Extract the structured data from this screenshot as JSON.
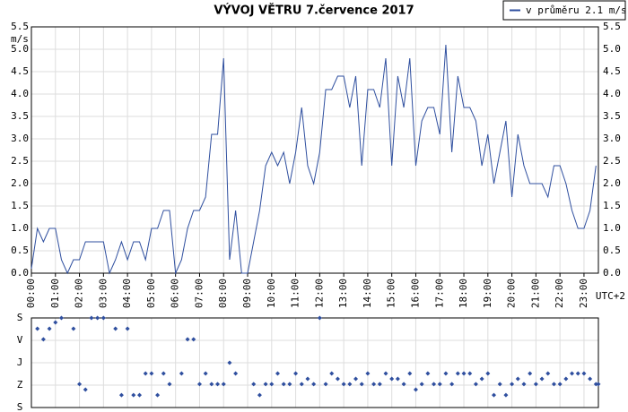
{
  "chart_data": [
    {
      "type": "line",
      "title": "VÝVOJ VĚTRU  7.července 2017",
      "y_label": "m/s",
      "x_label": "UTC+2",
      "legend_position": "top-right",
      "grid": true,
      "xlim": [
        0,
        23.6
      ],
      "xticks": [
        {
          "value": 0,
          "label": "00:00"
        },
        {
          "value": 1,
          "label": "01:00"
        },
        {
          "value": 2,
          "label": "02:00"
        },
        {
          "value": 3,
          "label": "03:00"
        },
        {
          "value": 4,
          "label": "04:00"
        },
        {
          "value": 5,
          "label": "05:00"
        },
        {
          "value": 6,
          "label": "06:00"
        },
        {
          "value": 7,
          "label": "07:00"
        },
        {
          "value": 8,
          "label": "08:00"
        },
        {
          "value": 9,
          "label": "09:00"
        },
        {
          "value": 10,
          "label": "10:00"
        },
        {
          "value": 11,
          "label": "11:00"
        },
        {
          "value": 12,
          "label": "12:00"
        },
        {
          "value": 13,
          "label": "13:00"
        },
        {
          "value": 14,
          "label": "14:00"
        },
        {
          "value": 15,
          "label": "15:00"
        },
        {
          "value": 16,
          "label": "16:00"
        },
        {
          "value": 17,
          "label": "17:00"
        },
        {
          "value": 18,
          "label": "18:00"
        },
        {
          "value": 19,
          "label": "19:00"
        },
        {
          "value": 20,
          "label": "20:00"
        },
        {
          "value": 21,
          "label": "21:00"
        },
        {
          "value": 22,
          "label": "22:00"
        },
        {
          "value": 23,
          "label": "23:00"
        }
      ],
      "ylim": [
        0,
        5.5
      ],
      "yticks": [
        {
          "value": 0,
          "label": "0.0"
        },
        {
          "value": 0.5,
          "label": "0.5"
        },
        {
          "value": 1,
          "label": "1.0"
        },
        {
          "value": 1.5,
          "label": "1.5"
        },
        {
          "value": 2,
          "label": "2.0"
        },
        {
          "value": 2.5,
          "label": "2.5"
        },
        {
          "value": 3,
          "label": "3.0"
        },
        {
          "value": 3.5,
          "label": "3.5"
        },
        {
          "value": 4,
          "label": "4.0"
        },
        {
          "value": 4.5,
          "label": "4.5"
        },
        {
          "value": 5,
          "label": "5.0"
        },
        {
          "value": 5.5,
          "label": "5.5"
        }
      ],
      "x": [
        0,
        0.25,
        0.5,
        0.75,
        1,
        1.25,
        1.5,
        1.75,
        2,
        2.25,
        2.5,
        2.75,
        3,
        3.25,
        3.5,
        3.75,
        4,
        4.25,
        4.5,
        4.75,
        5,
        5.25,
        5.5,
        5.75,
        6,
        6.25,
        6.5,
        6.75,
        7,
        7.25,
        7.5,
        7.75,
        8,
        8.25,
        8.5,
        8.75,
        9,
        9.25,
        9.5,
        9.75,
        10,
        10.25,
        10.5,
        10.75,
        11,
        11.25,
        11.5,
        11.75,
        12,
        12.25,
        12.5,
        12.75,
        13,
        13.25,
        13.5,
        13.75,
        14,
        14.25,
        14.5,
        14.75,
        15,
        15.25,
        15.5,
        15.75,
        16,
        16.25,
        16.5,
        16.75,
        17,
        17.25,
        17.5,
        17.75,
        18,
        18.25,
        18.5,
        18.75,
        19,
        19.25,
        19.5,
        19.75,
        20,
        20.25,
        20.5,
        20.75,
        21,
        21.25,
        21.5,
        21.75,
        22,
        22.25,
        22.5,
        22.75,
        23,
        23.25,
        23.5
      ],
      "series": [
        {
          "name": "v průměru 2.1 m/s",
          "color": "#2f4f9f",
          "values": [
            0.1,
            1.0,
            0.7,
            1.0,
            1.0,
            0.3,
            0.0,
            0.3,
            0.3,
            0.7,
            0.7,
            0.7,
            0.7,
            0.0,
            0.3,
            0.7,
            0.3,
            0.7,
            0.7,
            0.3,
            1.0,
            1.0,
            1.4,
            1.4,
            0.0,
            0.3,
            1.0,
            1.4,
            1.4,
            1.7,
            3.1,
            3.1,
            4.8,
            0.3,
            1.4,
            0.0,
            0.0,
            0.7,
            1.4,
            2.4,
            2.7,
            2.4,
            2.7,
            2.0,
            2.7,
            3.7,
            2.4,
            2.0,
            2.7,
            4.1,
            4.1,
            4.4,
            4.4,
            3.7,
            4.4,
            2.4,
            4.1,
            4.1,
            3.7,
            4.8,
            2.4,
            4.4,
            3.7,
            4.8,
            2.4,
            3.4,
            3.7,
            3.7,
            3.1,
            5.1,
            2.7,
            4.4,
            3.7,
            3.7,
            3.4,
            2.4,
            3.1,
            2.0,
            2.7,
            3.4,
            1.7,
            3.1,
            2.4,
            2.0,
            2.0,
            2.0,
            1.7,
            2.4,
            2.4,
            2.0,
            1.4,
            1.0,
            1.0,
            1.4,
            2.4
          ]
        }
      ]
    },
    {
      "type": "scatter",
      "color": "#2f4f9f",
      "xlim": [
        0,
        23.6
      ],
      "ylim": [
        0,
        360
      ],
      "yticks": [
        {
          "value": 0,
          "label": "S"
        },
        {
          "value": 90,
          "label": "V"
        },
        {
          "value": 180,
          "label": "J"
        },
        {
          "value": 270,
          "label": "Z"
        },
        {
          "value": 360,
          "label": "S"
        }
      ],
      "x": [
        0.25,
        0.5,
        0.75,
        1,
        1.25,
        1.75,
        2,
        2.25,
        2.5,
        2.75,
        3,
        3.5,
        3.75,
        4,
        4.25,
        4.5,
        4.75,
        5,
        5.25,
        5.5,
        5.75,
        6.25,
        6.5,
        6.75,
        7,
        7.25,
        7.5,
        7.75,
        8,
        8.25,
        8.5,
        9.25,
        9.5,
        9.75,
        10,
        10.25,
        10.5,
        10.75,
        11,
        11.25,
        11.5,
        11.75,
        12,
        12.25,
        12.5,
        12.75,
        13,
        13.25,
        13.5,
        13.75,
        14,
        14.25,
        14.5,
        14.75,
        15,
        15.25,
        15.5,
        15.75,
        16,
        16.25,
        16.5,
        16.75,
        17,
        17.25,
        17.5,
        17.75,
        18,
        18.25,
        18.5,
        18.75,
        19,
        19.25,
        19.5,
        19.75,
        20,
        20.25,
        20.5,
        20.75,
        21,
        21.25,
        21.5,
        21.75,
        22,
        22.25,
        22.5,
        22.75,
        23,
        23.25,
        23.5,
        23.6
      ],
      "values": [
        43,
        86,
        43,
        18,
        0,
        43,
        266,
        288,
        0,
        0,
        0,
        43,
        310,
        43,
        310,
        310,
        223,
        223,
        310,
        223,
        266,
        223,
        86,
        86,
        266,
        223,
        266,
        266,
        266,
        180,
        223,
        266,
        310,
        266,
        266,
        223,
        266,
        266,
        223,
        266,
        245,
        266,
        0,
        266,
        223,
        245,
        266,
        266,
        245,
        266,
        223,
        266,
        266,
        223,
        245,
        245,
        266,
        223,
        288,
        266,
        223,
        266,
        266,
        223,
        266,
        223,
        223,
        223,
        266,
        245,
        223,
        310,
        266,
        310,
        266,
        245,
        266,
        223,
        266,
        245,
        223,
        266,
        266,
        245,
        223,
        223,
        223,
        245,
        266,
        266
      ]
    }
  ]
}
